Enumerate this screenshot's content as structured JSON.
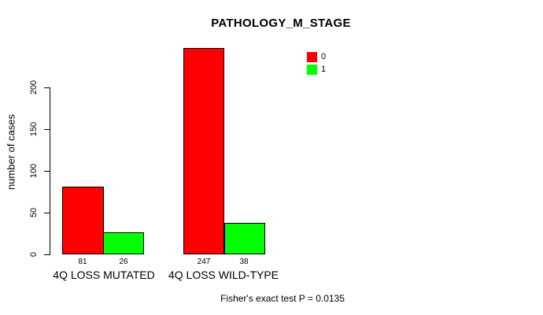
{
  "chart_data": {
    "type": "bar",
    "title": "PATHOLOGY_M_STAGE",
    "ylabel": "number of cases",
    "xlabel": "",
    "categories": [
      "4Q LOSS MUTATED",
      "4Q LOSS WILD-TYPE"
    ],
    "series": [
      {
        "name": "0",
        "color": "#ff0000",
        "values": [
          81,
          247
        ]
      },
      {
        "name": "1",
        "color": "#00ff00",
        "values": [
          26,
          38
        ]
      }
    ],
    "y_ticks": [
      0,
      50,
      100,
      150,
      200
    ],
    "ylim": [
      0,
      250
    ],
    "grid": false,
    "legend_position": "top-right",
    "bar_border_color": "#000000",
    "annotation": "Fisher's exact test P = 0.0135"
  }
}
